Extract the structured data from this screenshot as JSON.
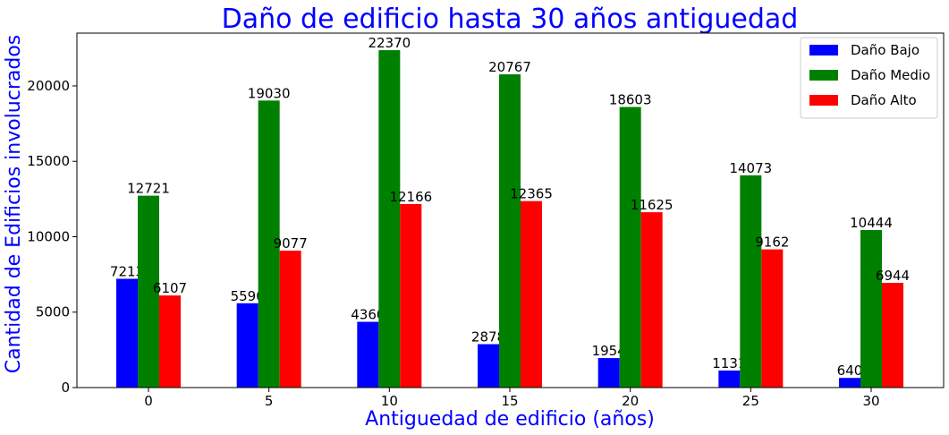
{
  "chart_data": {
    "type": "bar",
    "title": "Daño de edificio hasta 30 años antiguedad",
    "xlabel": "Antiguedad de edificio (años)",
    "ylabel": "Cantidad de Edificios involucrados",
    "categories": [
      "0",
      "5",
      "10",
      "15",
      "20",
      "25",
      "30"
    ],
    "series": [
      {
        "name": "Daño Bajo",
        "color": "#0000ff",
        "values": [
          7213,
          5590,
          4360,
          2878,
          1954,
          1131,
          640
        ]
      },
      {
        "name": "Daño Medio",
        "color": "#008000",
        "values": [
          12721,
          19030,
          22370,
          20767,
          18603,
          14073,
          10444
        ]
      },
      {
        "name": "Daño Alto",
        "color": "#ff0000",
        "values": [
          6107,
          9077,
          12166,
          12365,
          11625,
          9162,
          6944
        ]
      }
    ],
    "ylim": [
      0,
      23500
    ],
    "yticks": [
      0,
      5000,
      10000,
      15000,
      20000
    ],
    "legend_position": "top-right",
    "title_color": "#0000ff",
    "axis_label_color": "#0000ff",
    "grid": false
  }
}
